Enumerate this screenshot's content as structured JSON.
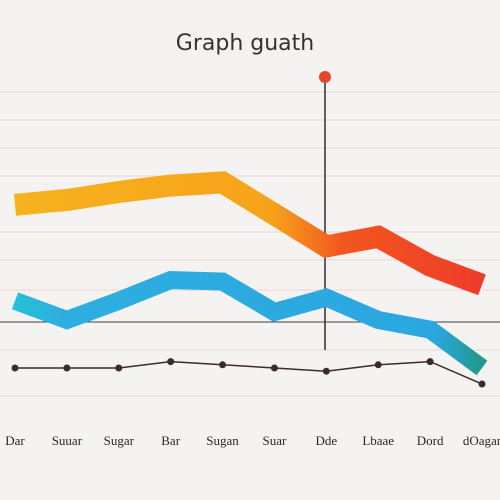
{
  "chart_data": {
    "type": "line",
    "title": "Graph guath",
    "categories": [
      "Dar",
      "Suuar",
      "Sugar",
      "Bar",
      "Sugan",
      "Suar",
      "Dde",
      "Lbaae",
      "Dord",
      "dOagar"
    ],
    "series": [
      {
        "color": "#f6a51c",
        "values": [
          61,
          62.5,
          65,
          67,
          68,
          58,
          48,
          51,
          42,
          36
        ]
      },
      {
        "color": "#2eaee0",
        "values": [
          31,
          25,
          31,
          37.5,
          37,
          27.5,
          32,
          25,
          22,
          10
        ]
      },
      {
        "color": "#3d2b2b",
        "values": [
          10,
          10,
          10,
          12,
          11,
          10,
          9,
          11,
          12,
          5
        ]
      }
    ],
    "ylim": [
      0,
      100
    ]
  }
}
